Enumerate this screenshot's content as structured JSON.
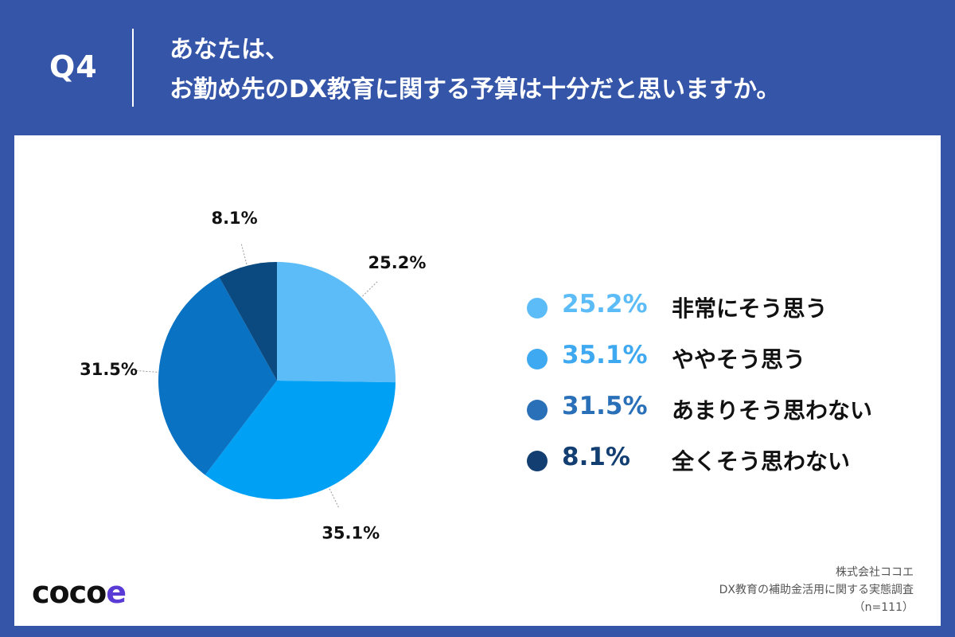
{
  "header": {
    "question_number": "Q4",
    "title_line1": "あなたは、",
    "title_line2": "お勤め先のDX教育に関する予算は十分だと思いますか。"
  },
  "chart_data": {
    "type": "pie",
    "categories": [
      "非常にそう思う",
      "ややそう思う",
      "あまりそう思わない",
      "全くそう思わない"
    ],
    "values": [
      25.2,
      35.1,
      31.5,
      8.1
    ],
    "data_labels": [
      "25.2%",
      "35.1%",
      "31.5%",
      "8.1%"
    ],
    "colors": [
      "#5bbcf8",
      "#00a0f5",
      "#0a72c2",
      "#0b4a80"
    ],
    "legend_placement": "right"
  },
  "legend": {
    "items": [
      {
        "pct": "25.2%",
        "label": "非常にそう思う",
        "color": "#5bbcf8",
        "text_color": "#5bbcf8"
      },
      {
        "pct": "35.1%",
        "label": "ややそう思う",
        "color": "#3ea9f0",
        "text_color": "#3ea9f0"
      },
      {
        "pct": "31.5%",
        "label": "あまりそう思わない",
        "color": "#2a70b8",
        "text_color": "#2a70b8"
      },
      {
        "pct": "8.1%",
        "label": "全くそう思わない",
        "color": "#123e72",
        "text_color": "#123e72"
      }
    ]
  },
  "footer": {
    "logo_main": "coco",
    "logo_e": "e",
    "source_line1": "株式会社ココエ",
    "source_line2": "DX教育の補助金活用に関する実態調査",
    "source_line3": "（n=111）"
  }
}
